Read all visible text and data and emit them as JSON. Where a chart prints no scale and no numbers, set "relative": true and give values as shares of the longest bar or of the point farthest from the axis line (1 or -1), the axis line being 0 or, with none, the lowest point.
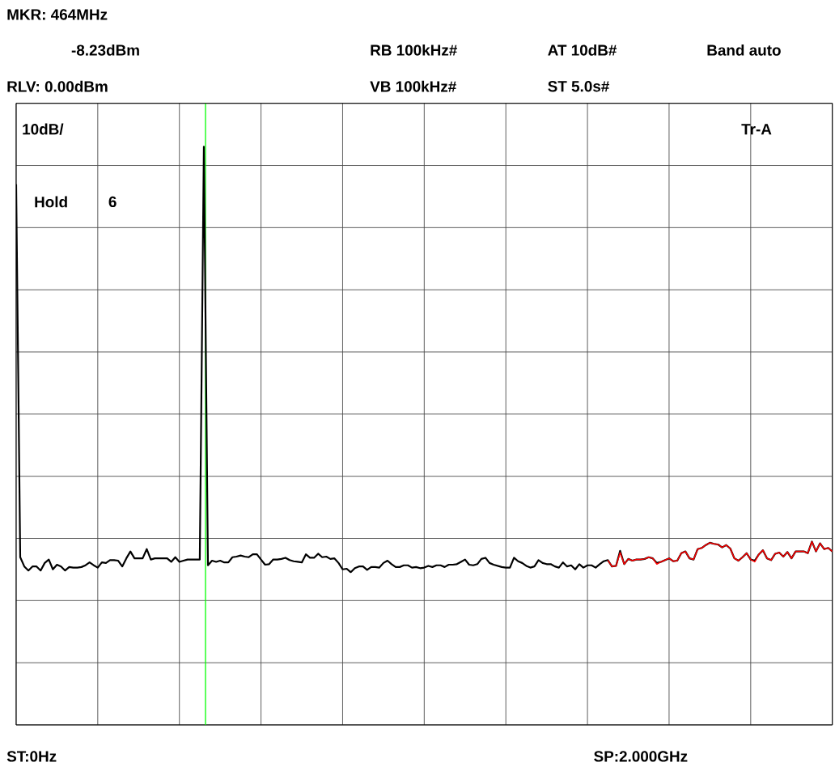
{
  "chart_data": {
    "type": "line",
    "relative": true,
    "annotations": [
      "MKR: 464MHz",
      "-8.23dBm",
      "RB 100kHz#",
      "AT 10dB#",
      "Band auto",
      "RLV: 0.00dBm",
      "VB 100kHz#",
      "ST 5.0s#",
      "10dB/",
      "Tr-A",
      "Hold",
      "6",
      "ST:0Hz",
      "SP:2.000GHz"
    ],
    "categories": [
      null,
      null,
      null,
      null,
      null,
      null,
      null,
      null,
      null,
      null,
      null,
      null,
      null,
      null,
      null,
      null,
      null,
      null,
      null,
      null,
      null,
      null,
      null,
      null,
      null,
      null,
      null,
      null,
      null,
      null,
      null,
      null,
      null,
      null,
      null,
      null,
      null,
      null,
      null,
      null,
      null,
      null,
      null,
      null,
      null,
      null,
      null,
      null,
      null,
      null,
      null,
      null,
      null,
      null,
      null,
      null,
      null,
      null,
      null,
      null,
      null,
      null,
      null,
      null,
      null,
      null,
      null,
      null,
      null,
      null,
      null,
      null,
      null,
      null,
      null,
      null,
      null,
      null,
      null,
      null,
      null,
      null,
      null,
      null,
      null,
      null,
      null,
      null,
      null,
      null,
      null,
      null,
      null,
      null,
      null,
      null,
      null,
      null,
      null,
      null,
      null,
      null,
      null,
      null,
      null,
      null,
      null,
      null,
      null,
      null,
      null,
      null,
      null,
      null,
      null,
      null,
      null,
      null,
      null,
      null,
      null,
      null,
      null,
      null,
      null,
      null,
      null,
      null,
      null,
      null,
      null,
      null,
      null,
      null,
      null,
      null,
      null,
      null,
      null,
      null,
      null,
      null,
      null,
      null,
      null,
      null,
      null,
      null,
      null,
      null,
      null,
      null,
      null,
      null,
      null,
      null,
      null,
      null,
      null,
      null,
      null,
      null,
      null,
      null,
      null,
      null,
      null,
      null,
      null,
      null,
      null,
      null,
      null,
      null,
      null,
      null,
      null,
      null,
      null,
      null,
      null,
      null,
      null,
      null,
      null,
      null,
      null,
      null,
      null,
      null,
      null,
      null,
      null,
      null,
      null,
      null,
      null,
      null,
      null,
      null,
      null
    ],
    "grid": true,
    "line_style": "solid",
    "series": [
      {
        "color": "#ff0000",
        "values": [
          null,
          null,
          null,
          null,
          null,
          null,
          null,
          null,
          null,
          null,
          null,
          null,
          null,
          null,
          null,
          null,
          null,
          null,
          null,
          null,
          null,
          null,
          null,
          null,
          null,
          null,
          null,
          null,
          null,
          null,
          null,
          null,
          null,
          null,
          null,
          null,
          null,
          null,
          null,
          null,
          null,
          null,
          null,
          null,
          null,
          null,
          null,
          null,
          null,
          null,
          null,
          null,
          null,
          null,
          null,
          null,
          null,
          null,
          null,
          null,
          null,
          null,
          null,
          null,
          null,
          null,
          null,
          null,
          null,
          null,
          null,
          null,
          null,
          null,
          null,
          null,
          null,
          null,
          null,
          null,
          null,
          null,
          null,
          null,
          null,
          null,
          null,
          null,
          null,
          null,
          null,
          null,
          null,
          null,
          null,
          null,
          null,
          null,
          null,
          null,
          null,
          null,
          null,
          null,
          null,
          null,
          null,
          null,
          null,
          null,
          null,
          null,
          null,
          null,
          null,
          null,
          null,
          null,
          null,
          null,
          null,
          null,
          null,
          null,
          null,
          null,
          null,
          null,
          null,
          null,
          null,
          null,
          null,
          null,
          null,
          null,
          null,
          null,
          null,
          null,
          null,
          null,
          null,
          null,
          null,
          0.285,
          0.274,
          0.275,
          0.298,
          0.278,
          0.287,
          0.284,
          0.286,
          0.286,
          0.287,
          0.29,
          0.288,
          0.278,
          0.282,
          0.285,
          0.288,
          0.283,
          0.284,
          0.297,
          0.3,
          0.288,
          0.286,
          0.304,
          0.306,
          0.311,
          0.315,
          0.313,
          0.312,
          0.307,
          0.311,
          0.305,
          0.288,
          0.284,
          0.29,
          0.297,
          0.286,
          0.282,
          0.295,
          0.302,
          0.288,
          0.285,
          0.296,
          0.298,
          0.291,
          0.299,
          0.288,
          0.3,
          0.3,
          0.3,
          0.297,
          0.317,
          0.3,
          0.314,
          0.304,
          0.306,
          0.3
        ]
      },
      {
        "color": "#000000",
        "values": [
          0.935,
          0.29,
          0.274,
          0.267,
          0.274,
          0.274,
          0.267,
          0.28,
          0.286,
          0.269,
          0.277,
          0.274,
          0.267,
          0.273,
          0.272,
          0.272,
          0.273,
          0.276,
          0.281,
          0.276,
          0.272,
          0.281,
          0.28,
          0.285,
          0.285,
          0.284,
          0.274,
          0.288,
          0.3,
          0.288,
          0.288,
          0.288,
          0.304,
          0.286,
          0.288,
          0.288,
          0.288,
          0.288,
          0.282,
          0.29,
          0.282,
          0.284,
          0.286,
          0.286,
          0.286,
          0.286,
          1,
          0.276,
          0.284,
          0.282,
          0.284,
          0.281,
          0.281,
          0.29,
          0.291,
          0.293,
          0.291,
          0.29,
          0.295,
          0.295,
          0.286,
          0.277,
          0.278,
          0.286,
          0.286,
          0.287,
          0.289,
          0.285,
          0.283,
          0.282,
          0.281,
          0.295,
          0.289,
          0.289,
          0.296,
          0.29,
          0.291,
          0.287,
          0.288,
          0.28,
          0.269,
          0.27,
          0.264,
          0.271,
          0.274,
          0.274,
          0.268,
          0.273,
          0.273,
          0.272,
          0.28,
          0.284,
          0.278,
          0.273,
          0.273,
          0.276,
          0.276,
          0.272,
          0.273,
          0.271,
          0.272,
          0.275,
          0.273,
          0.276,
          0.276,
          0.273,
          0.277,
          0.277,
          0.278,
          0.282,
          0.286,
          0.277,
          0.276,
          0.278,
          0.287,
          0.289,
          0.28,
          0.277,
          0.275,
          0.273,
          0.272,
          0.272,
          0.289,
          0.283,
          0.28,
          0.275,
          0.272,
          0.274,
          0.285,
          0.28,
          0.278,
          0.278,
          0.274,
          0.272,
          0.281,
          0.274,
          0.276,
          0.269,
          0.278,
          0.272,
          0.276,
          0.276,
          0.272,
          0.278,
          0.283,
          0.285,
          0.274,
          0.275,
          0.301,
          0.278,
          0.287,
          0.284,
          0.286,
          0.286,
          0.287,
          0.29,
          0.288,
          0.28,
          0.282,
          0.285,
          0.288,
          0.283,
          0.284,
          0.297,
          0.3,
          0.288,
          0.286,
          0.304,
          0.306,
          0.311,
          0.315,
          0.313,
          0.312,
          0.307,
          0.311,
          0.305,
          0.288,
          0.284,
          0.29,
          0.297,
          0.286,
          0.284,
          0.295,
          0.302,
          0.288,
          0.285,
          0.296,
          0.298,
          0.291,
          0.299,
          0.288,
          0.3,
          0.3,
          0.3,
          0.297,
          0.317,
          0.3,
          0.314,
          0.304,
          0.306,
          0.3
        ]
      }
    ]
  }
}
